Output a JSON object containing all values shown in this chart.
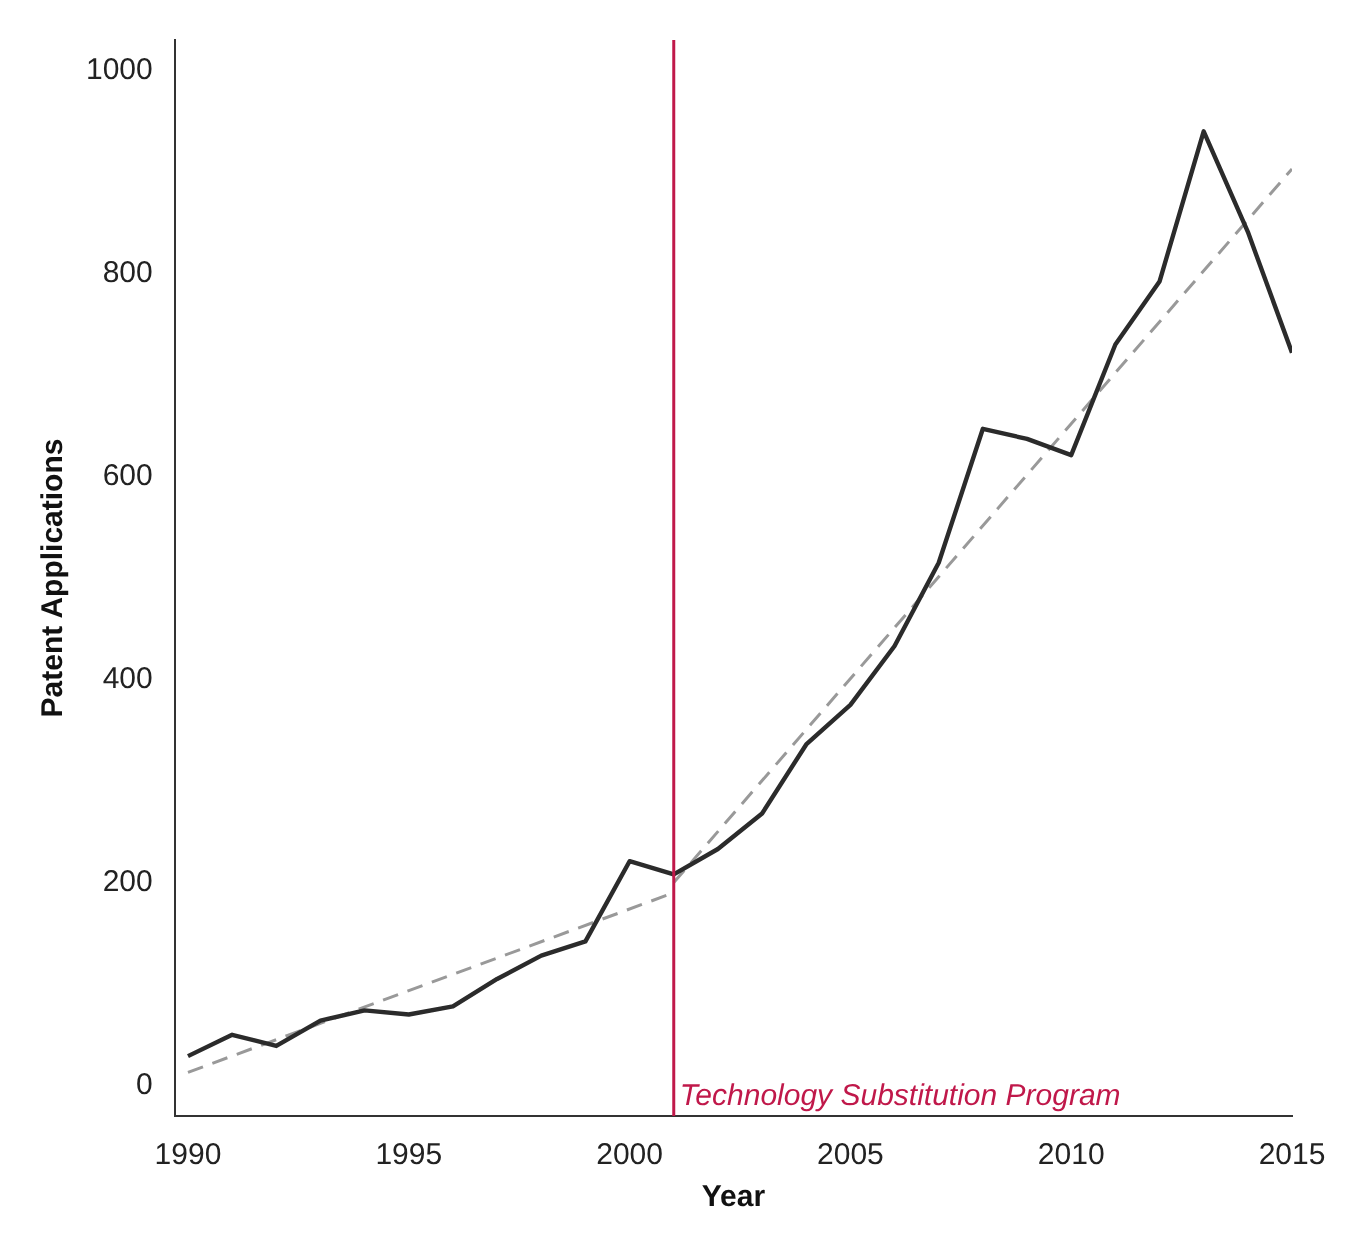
{
  "chart_data": {
    "type": "line",
    "xlabel": "Year",
    "ylabel": "Patent Applications",
    "x": [
      1990,
      1991,
      1992,
      1993,
      1994,
      1995,
      1996,
      1997,
      1998,
      1999,
      2000,
      2001,
      2002,
      2003,
      2004,
      2005,
      2006,
      2007,
      2008,
      2009,
      2010,
      2011,
      2012,
      2013,
      2014,
      2015
    ],
    "series": [
      {
        "color": "#2b2b2b",
        "line_style": "solid",
        "values": [
          29,
          50,
          39,
          64,
          74,
          70,
          78,
          105,
          128,
          142,
          221,
          208,
          233,
          268,
          336,
          375,
          433,
          515,
          647,
          637,
          621,
          730,
          792,
          940,
          841,
          722
        ]
      },
      {
        "type": "line",
        "color": "#999999",
        "line_style": "dashed",
        "x": [
          1990,
          2001
        ],
        "values": [
          13,
          190
        ]
      },
      {
        "type": "line",
        "color": "#999999",
        "line_style": "dashed",
        "x": [
          2001,
          2015
        ],
        "values": [
          200,
          903
        ]
      }
    ],
    "xlim": [
      1989.7,
      2015
    ],
    "xticks": [
      1990,
      1995,
      2000,
      2005,
      2010,
      2015
    ],
    "ylim": [
      -30,
      1030
    ],
    "yticks": [
      0,
      200,
      400,
      600,
      800,
      1000
    ],
    "ref_lines": [
      {
        "axis": "x",
        "value": 2001,
        "label": "Technology Substitution Program",
        "color": "#c0184a"
      }
    ],
    "grid": false,
    "legend": false,
    "marker": "none"
  }
}
